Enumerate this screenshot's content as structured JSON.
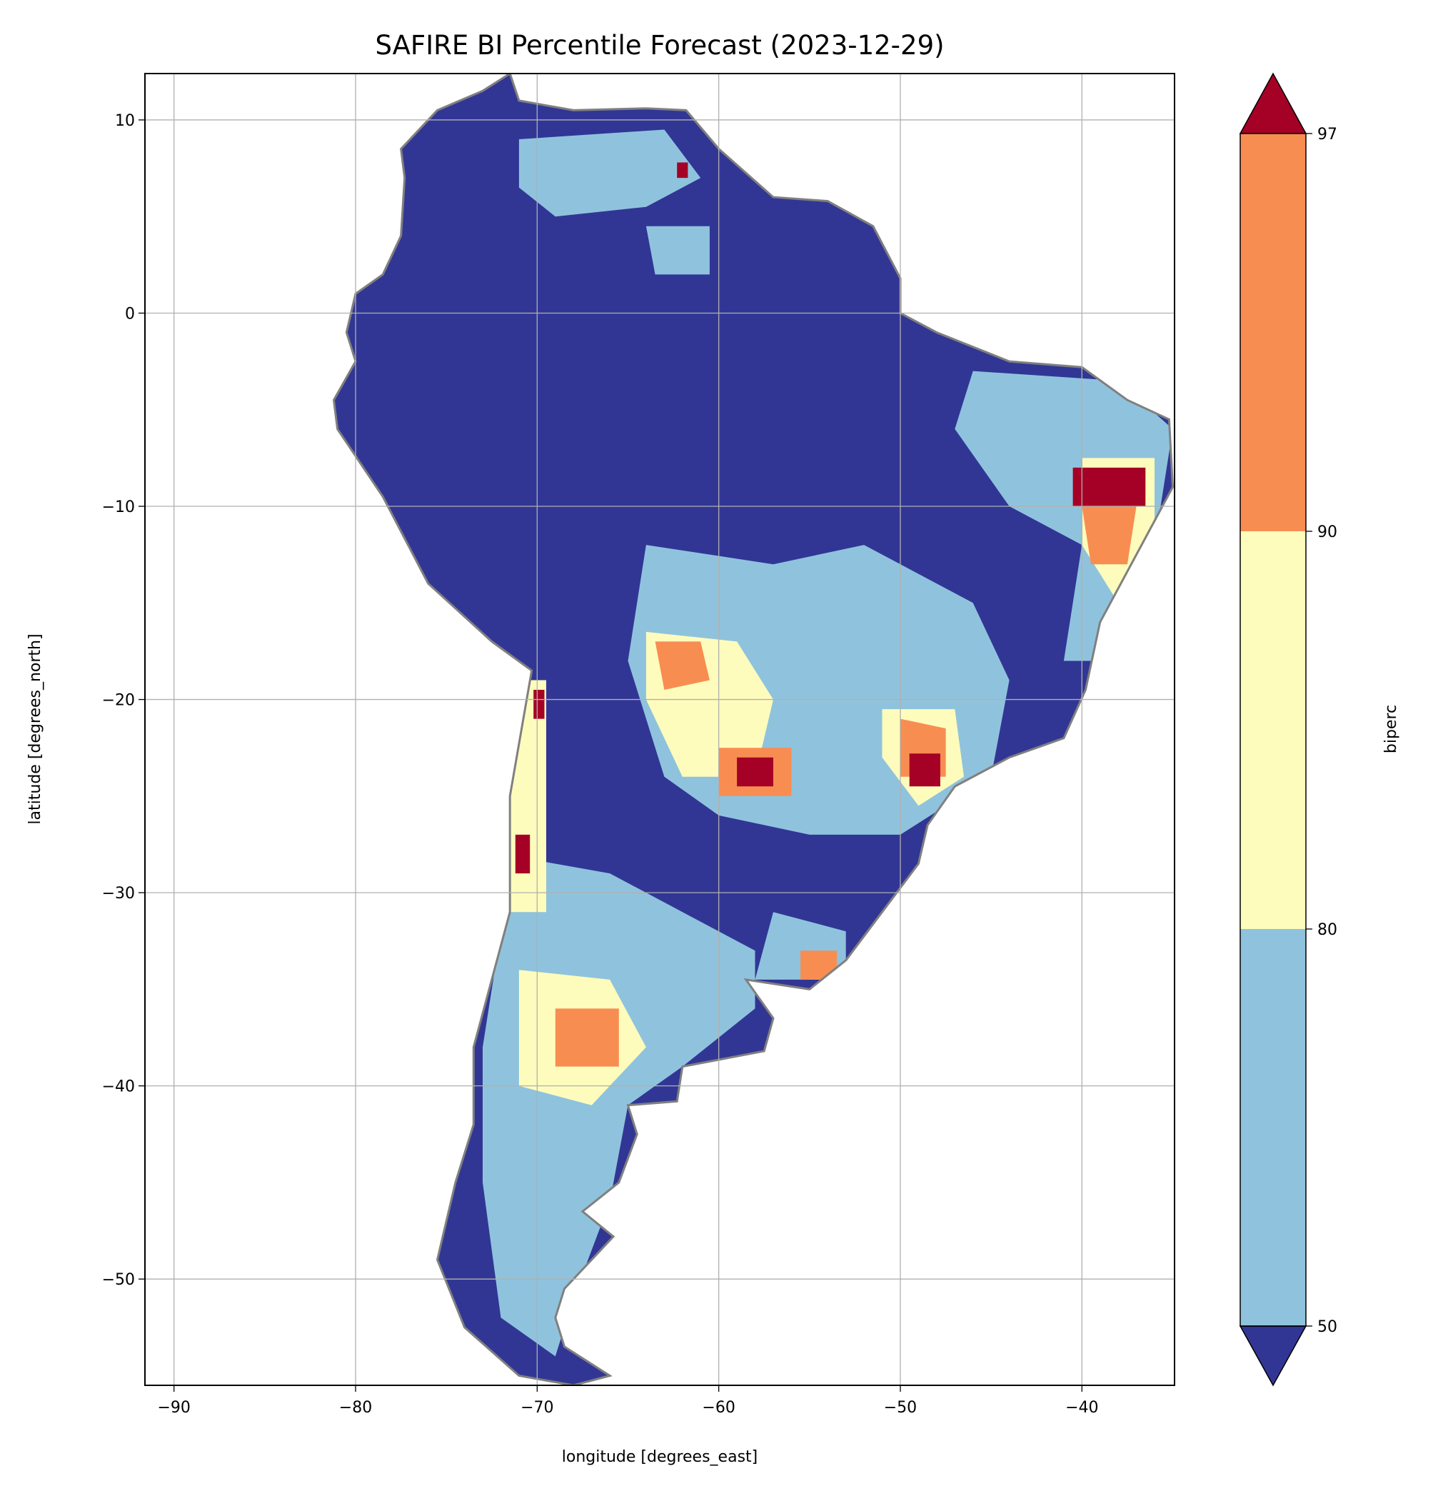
{
  "chart_data": {
    "type": "heatmap",
    "title": "SAFIRE BI Percentile Forecast (2023-12-29)",
    "xlabel": "longitude [degrees_east]",
    "ylabel": "latitude [degrees_north]",
    "xlim": [
      -91.6,
      -34.9
    ],
    "ylim": [
      -55.5,
      12.4
    ],
    "xticks": [
      -90,
      -80,
      -70,
      -60,
      -50,
      -40
    ],
    "xtick_labels": [
      "−90",
      "−80",
      "−70",
      "−60",
      "−50",
      "−40"
    ],
    "yticks": [
      10,
      0,
      -10,
      -20,
      -30,
      -40,
      -50
    ],
    "ytick_labels": [
      "10",
      "0",
      "−10",
      "−20",
      "−30",
      "−40",
      "−50"
    ],
    "grid": true,
    "colorbar": {
      "label": "biperc",
      "ticks": [
        50,
        80,
        90,
        97
      ],
      "tick_labels": [
        "50",
        "80",
        "90",
        "97"
      ],
      "extend": "both",
      "bins": [
        {
          "range": "<50",
          "color": "#313695"
        },
        {
          "range": "50-80",
          "color": "#8fc3dd"
        },
        {
          "range": "80-90",
          "color": "#fefcbc"
        },
        {
          "range": "90-97",
          "color": "#f88d52"
        },
        {
          "range": ">97",
          "color": "#a50026"
        }
      ]
    },
    "border_color": "#808080"
  }
}
